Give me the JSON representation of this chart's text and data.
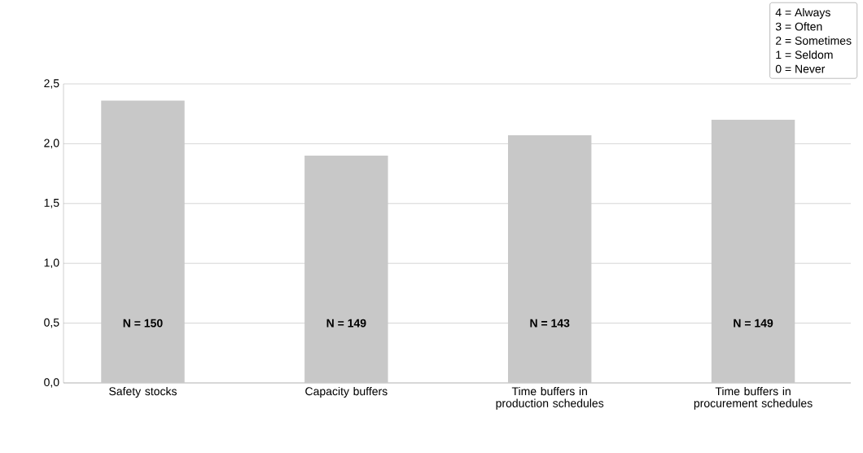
{
  "chart_data": {
    "type": "bar",
    "categories": [
      "Safety stocks",
      "Capacity buffers",
      "Time buffers in production schedules",
      "Time buffers in procurement schedules"
    ],
    "values": [
      2.36,
      1.9,
      2.07,
      2.2
    ],
    "color": "#c8c8c8",
    "ylim": [
      0,
      2.5
    ],
    "yticks": [
      {
        "value": 0,
        "label": "0,0"
      },
      {
        "value": 0.5,
        "label": "0,5"
      },
      {
        "value": 1,
        "label": "1,0"
      },
      {
        "value": 1.5,
        "label": "1,5"
      },
      {
        "value": 2,
        "label": "2,0"
      },
      {
        "value": 2.5,
        "label": "2,5"
      }
    ],
    "grid": "y",
    "annotations": [
      "N = 150",
      "N = 149",
      "N = 143",
      "N = 149",
      "4   = Always",
      "3   = Often",
      "2   = Sometimes",
      "1   = Seldom",
      "0   = Never"
    ]
  }
}
